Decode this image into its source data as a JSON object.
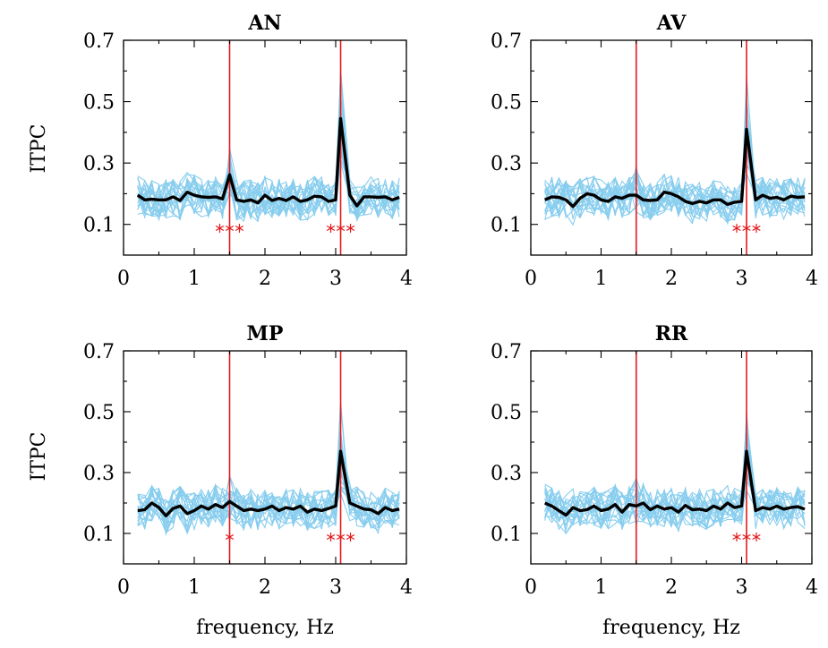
{
  "colors": {
    "subject_line": "#87cdee",
    "mean_line": "#000000",
    "marker_line": "#e41a1c",
    "significance": "#e41a1c"
  },
  "labels": {
    "ylabel": "ITPC",
    "xlabel": "frequency, Hz"
  },
  "chart_data": [
    {
      "type": "line",
      "title": "AN",
      "xlim": [
        0,
        4
      ],
      "ylim": [
        0,
        0.7
      ],
      "xticks": [
        "0",
        "1",
        "2",
        "3",
        "4"
      ],
      "yticks": [
        "0.1",
        "0.3",
        "0.5",
        "0.7"
      ],
      "grid": false,
      "marker_frequencies": [
        1.5,
        3.07
      ],
      "significance_stars": [
        {
          "x": 1.5,
          "count": 3
        },
        {
          "x": 3.07,
          "count": 3
        }
      ],
      "series": [
        {
          "role": "mean",
          "x": [
            0.2,
            0.3,
            0.4,
            0.5,
            0.6,
            0.7,
            0.8,
            0.9,
            1.0,
            1.1,
            1.2,
            1.3,
            1.4,
            1.5,
            1.6,
            1.7,
            1.8,
            1.9,
            2.0,
            2.1,
            2.2,
            2.3,
            2.4,
            2.5,
            2.6,
            2.7,
            2.8,
            2.9,
            3.0,
            3.07,
            3.2,
            3.3,
            3.4,
            3.5,
            3.6,
            3.7,
            3.8,
            3.9
          ],
          "values": [
            0.195,
            0.18,
            0.182,
            0.18,
            0.18,
            0.19,
            0.178,
            0.205,
            0.195,
            0.19,
            0.188,
            0.19,
            0.183,
            0.262,
            0.18,
            0.175,
            0.18,
            0.17,
            0.195,
            0.178,
            0.185,
            0.178,
            0.19,
            0.175,
            0.18,
            0.192,
            0.19,
            0.175,
            0.18,
            0.445,
            0.195,
            0.16,
            0.19,
            0.19,
            0.188,
            0.19,
            0.18,
            0.188
          ]
        }
      ]
    },
    {
      "type": "line",
      "title": "AV",
      "xlim": [
        0,
        4
      ],
      "ylim": [
        0,
        0.7
      ],
      "xticks": [
        "0",
        "1",
        "2",
        "3",
        "4"
      ],
      "yticks": [
        "0.1",
        "0.3",
        "0.5",
        "0.7"
      ],
      "grid": false,
      "marker_frequencies": [
        1.5,
        3.07
      ],
      "significance_stars": [
        {
          "x": 3.07,
          "count": 3
        }
      ],
      "series": [
        {
          "role": "mean",
          "x": [
            0.2,
            0.3,
            0.4,
            0.5,
            0.6,
            0.7,
            0.8,
            0.9,
            1.0,
            1.1,
            1.2,
            1.3,
            1.4,
            1.5,
            1.6,
            1.7,
            1.8,
            1.9,
            2.0,
            2.1,
            2.2,
            2.3,
            2.4,
            2.5,
            2.6,
            2.7,
            2.8,
            2.9,
            3.0,
            3.07,
            3.2,
            3.3,
            3.4,
            3.5,
            3.6,
            3.7,
            3.8,
            3.9
          ],
          "values": [
            0.18,
            0.19,
            0.188,
            0.18,
            0.158,
            0.185,
            0.2,
            0.195,
            0.18,
            0.175,
            0.19,
            0.185,
            0.195,
            0.195,
            0.18,
            0.178,
            0.18,
            0.205,
            0.2,
            0.19,
            0.175,
            0.168,
            0.175,
            0.17,
            0.18,
            0.18,
            0.165,
            0.172,
            0.175,
            0.41,
            0.18,
            0.195,
            0.185,
            0.188,
            0.18,
            0.192,
            0.188,
            0.19
          ]
        }
      ]
    },
    {
      "type": "line",
      "title": "MP",
      "xlim": [
        0,
        4
      ],
      "ylim": [
        0,
        0.7
      ],
      "xticks": [
        "0",
        "1",
        "2",
        "3",
        "4"
      ],
      "yticks": [
        "0.1",
        "0.3",
        "0.5",
        "0.7"
      ],
      "grid": false,
      "marker_frequencies": [
        1.5,
        3.07
      ],
      "significance_stars": [
        {
          "x": 1.5,
          "count": 1
        },
        {
          "x": 3.07,
          "count": 3
        }
      ],
      "series": [
        {
          "role": "mean",
          "x": [
            0.2,
            0.3,
            0.4,
            0.5,
            0.6,
            0.7,
            0.8,
            0.9,
            1.0,
            1.1,
            1.2,
            1.3,
            1.4,
            1.5,
            1.6,
            1.7,
            1.8,
            1.9,
            2.0,
            2.1,
            2.2,
            2.3,
            2.4,
            2.5,
            2.6,
            2.7,
            2.8,
            2.9,
            3.0,
            3.07,
            3.2,
            3.3,
            3.4,
            3.5,
            3.6,
            3.7,
            3.8,
            3.9
          ],
          "values": [
            0.175,
            0.178,
            0.2,
            0.185,
            0.158,
            0.182,
            0.19,
            0.165,
            0.175,
            0.19,
            0.18,
            0.195,
            0.185,
            0.205,
            0.19,
            0.175,
            0.18,
            0.175,
            0.18,
            0.19,
            0.175,
            0.185,
            0.18,
            0.19,
            0.17,
            0.18,
            0.175,
            0.182,
            0.19,
            0.37,
            0.2,
            0.19,
            0.18,
            0.178,
            0.165,
            0.185,
            0.175,
            0.18
          ]
        }
      ]
    },
    {
      "type": "line",
      "title": "RR",
      "xlim": [
        0,
        4
      ],
      "ylim": [
        0,
        0.7
      ],
      "xticks": [
        "0",
        "1",
        "2",
        "3",
        "4"
      ],
      "yticks": [
        "0.1",
        "0.3",
        "0.5",
        "0.7"
      ],
      "grid": false,
      "marker_frequencies": [
        1.5,
        3.07
      ],
      "significance_stars": [
        {
          "x": 3.07,
          "count": 3
        }
      ],
      "series": [
        {
          "role": "mean",
          "x": [
            0.2,
            0.3,
            0.4,
            0.5,
            0.6,
            0.7,
            0.8,
            0.9,
            1.0,
            1.1,
            1.2,
            1.3,
            1.4,
            1.5,
            1.6,
            1.7,
            1.8,
            1.9,
            2.0,
            2.1,
            2.2,
            2.3,
            2.4,
            2.5,
            2.6,
            2.7,
            2.8,
            2.9,
            3.0,
            3.07,
            3.2,
            3.3,
            3.4,
            3.5,
            3.6,
            3.7,
            3.8,
            3.9
          ],
          "values": [
            0.2,
            0.19,
            0.175,
            0.16,
            0.185,
            0.175,
            0.178,
            0.19,
            0.175,
            0.18,
            0.195,
            0.17,
            0.195,
            0.19,
            0.2,
            0.178,
            0.19,
            0.18,
            0.185,
            0.17,
            0.192,
            0.178,
            0.18,
            0.175,
            0.19,
            0.18,
            0.2,
            0.185,
            0.19,
            0.37,
            0.175,
            0.185,
            0.18,
            0.19,
            0.18,
            0.185,
            0.188,
            0.18
          ]
        }
      ]
    }
  ]
}
